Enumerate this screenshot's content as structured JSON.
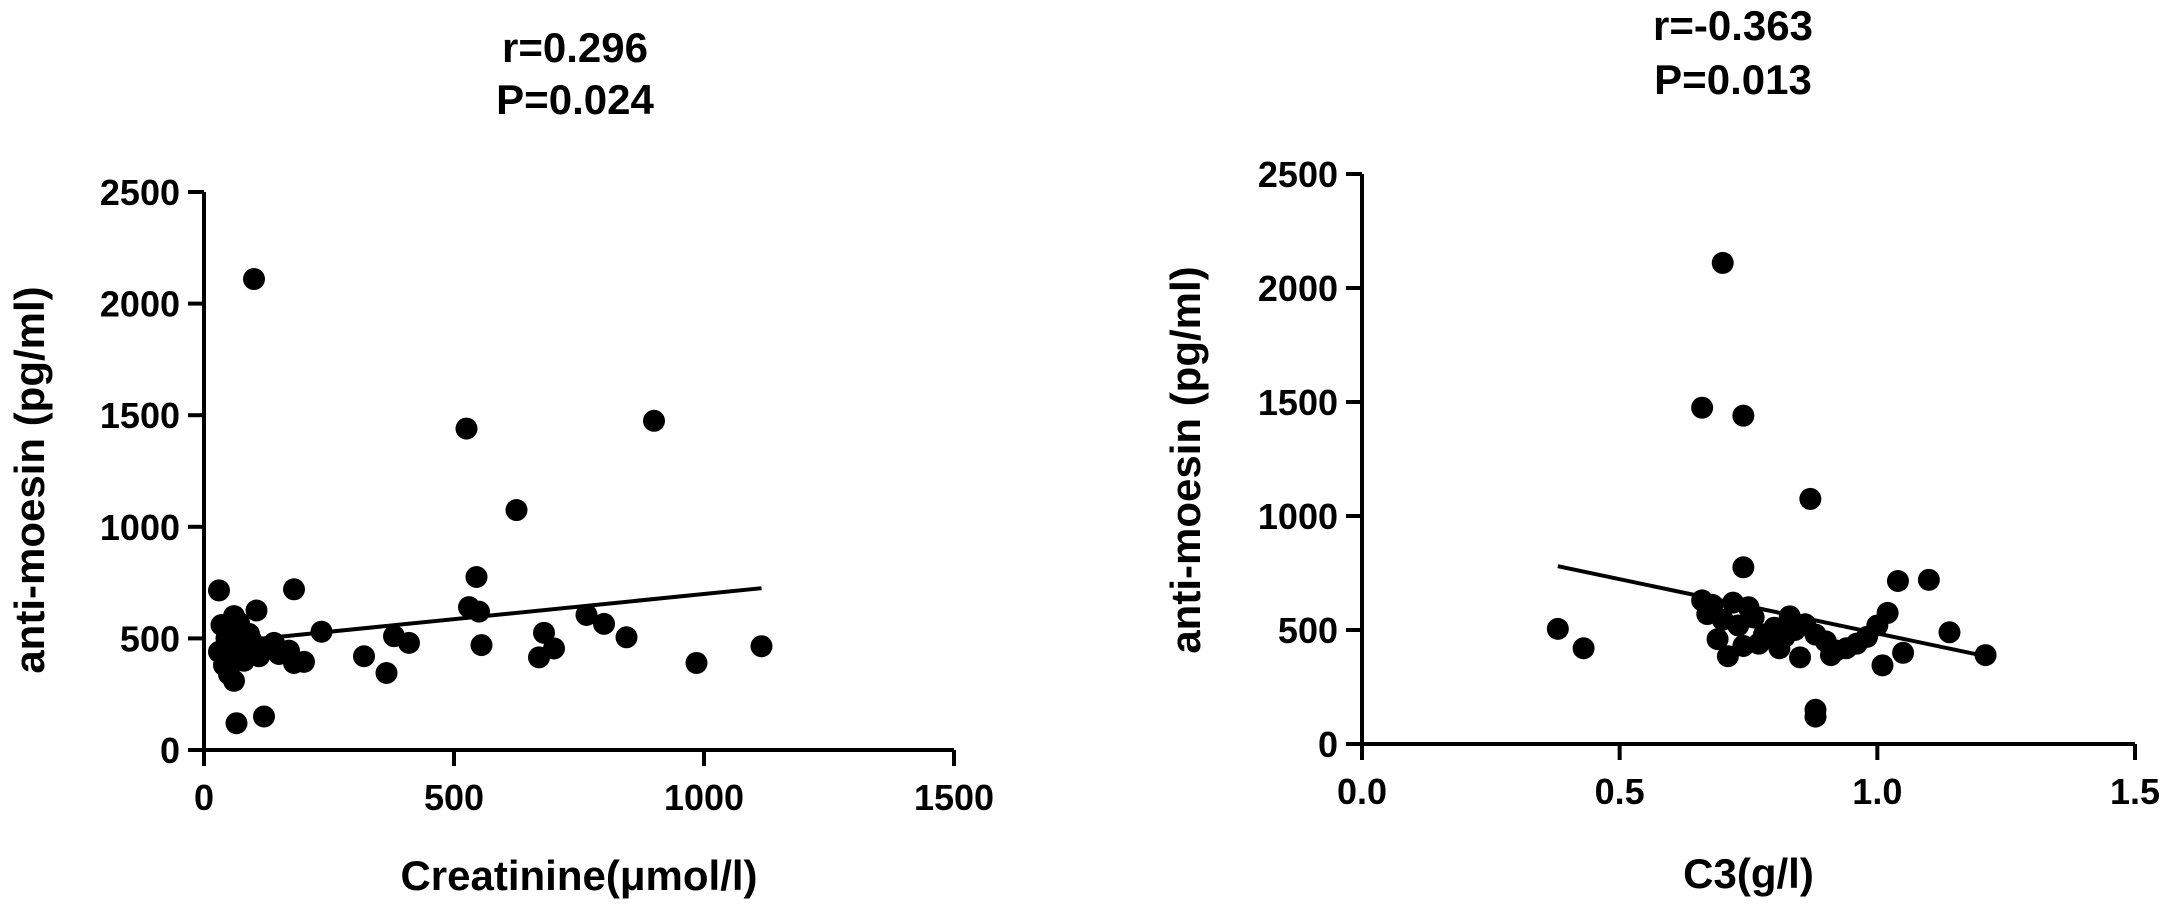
{
  "chart_data": [
    {
      "type": "scatter",
      "title": "r=0.296",
      "subtitle": "P=0.024",
      "xlabel": "Creatinine(μmol/l)",
      "ylabel": "anti-moesin (pg/ml)",
      "xlim": [
        0,
        1500
      ],
      "ylim": [
        0,
        2500
      ],
      "xticks": [
        "0",
        "500",
        "1000",
        "1500"
      ],
      "yticks": [
        "0",
        "500",
        "1000",
        "1500",
        "2000",
        "2500"
      ],
      "xtick_values": [
        0,
        500,
        1000,
        1500
      ],
      "ytick_values": [
        0,
        500,
        1000,
        1500,
        2000,
        2500
      ],
      "grid": false,
      "points": [
        {
          "x": 100,
          "y": 2110
        },
        {
          "x": 525,
          "y": 1440
        },
        {
          "x": 900,
          "y": 1475
        },
        {
          "x": 625,
          "y": 1075
        },
        {
          "x": 545,
          "y": 775
        },
        {
          "x": 30,
          "y": 715
        },
        {
          "x": 180,
          "y": 720
        },
        {
          "x": 530,
          "y": 640
        },
        {
          "x": 550,
          "y": 620
        },
        {
          "x": 765,
          "y": 605
        },
        {
          "x": 105,
          "y": 625
        },
        {
          "x": 60,
          "y": 600
        },
        {
          "x": 800,
          "y": 565
        },
        {
          "x": 235,
          "y": 530
        },
        {
          "x": 680,
          "y": 525
        },
        {
          "x": 380,
          "y": 510
        },
        {
          "x": 845,
          "y": 505
        },
        {
          "x": 410,
          "y": 480
        },
        {
          "x": 555,
          "y": 470
        },
        {
          "x": 700,
          "y": 455
        },
        {
          "x": 320,
          "y": 420
        },
        {
          "x": 670,
          "y": 415
        },
        {
          "x": 985,
          "y": 390
        },
        {
          "x": 1115,
          "y": 465
        },
        {
          "x": 365,
          "y": 345
        },
        {
          "x": 180,
          "y": 390
        },
        {
          "x": 200,
          "y": 395
        },
        {
          "x": 170,
          "y": 445
        },
        {
          "x": 125,
          "y": 460
        },
        {
          "x": 95,
          "y": 490
        },
        {
          "x": 80,
          "y": 470
        },
        {
          "x": 70,
          "y": 430
        },
        {
          "x": 55,
          "y": 530
        },
        {
          "x": 45,
          "y": 500
        },
        {
          "x": 30,
          "y": 440
        },
        {
          "x": 40,
          "y": 380
        },
        {
          "x": 50,
          "y": 340
        },
        {
          "x": 60,
          "y": 310
        },
        {
          "x": 80,
          "y": 400
        },
        {
          "x": 110,
          "y": 420
        },
        {
          "x": 140,
          "y": 480
        },
        {
          "x": 90,
          "y": 520
        },
        {
          "x": 70,
          "y": 570
        },
        {
          "x": 65,
          "y": 120
        },
        {
          "x": 120,
          "y": 150
        },
        {
          "x": 150,
          "y": 430
        },
        {
          "x": 35,
          "y": 560
        }
      ],
      "trendline": {
        "x": [
          30,
          1115
        ],
        "y": [
          480,
          725
        ]
      }
    },
    {
      "type": "scatter",
      "title": "r=-0.363",
      "subtitle": "P=0.013",
      "xlabel": "C3(g/l)",
      "ylabel": "anti-moesin (pg/ml)",
      "xlim": [
        0,
        1.5
      ],
      "ylim": [
        0,
        2500
      ],
      "xticks": [
        "0.0",
        "0.5",
        "1.0",
        "1.5"
      ],
      "yticks": [
        "0",
        "500",
        "1000",
        "1500",
        "2000",
        "2500"
      ],
      "xtick_values": [
        0,
        0.5,
        1.0,
        1.5
      ],
      "ytick_values": [
        0,
        500,
        1000,
        1500,
        2000,
        2500
      ],
      "grid": false,
      "points": [
        {
          "x": 0.7,
          "y": 2110
        },
        {
          "x": 0.66,
          "y": 1475
        },
        {
          "x": 0.74,
          "y": 1440
        },
        {
          "x": 0.87,
          "y": 1075
        },
        {
          "x": 0.74,
          "y": 775
        },
        {
          "x": 1.04,
          "y": 715
        },
        {
          "x": 1.1,
          "y": 720
        },
        {
          "x": 0.38,
          "y": 505
        },
        {
          "x": 0.43,
          "y": 420
        },
        {
          "x": 0.66,
          "y": 630
        },
        {
          "x": 0.68,
          "y": 610
        },
        {
          "x": 0.72,
          "y": 620
        },
        {
          "x": 0.75,
          "y": 600
        },
        {
          "x": 0.67,
          "y": 570
        },
        {
          "x": 0.7,
          "y": 545
        },
        {
          "x": 0.73,
          "y": 520
        },
        {
          "x": 0.76,
          "y": 555
        },
        {
          "x": 0.78,
          "y": 480
        },
        {
          "x": 0.8,
          "y": 510
        },
        {
          "x": 0.82,
          "y": 470
        },
        {
          "x": 0.84,
          "y": 500
        },
        {
          "x": 0.86,
          "y": 525
        },
        {
          "x": 0.88,
          "y": 480
        },
        {
          "x": 0.9,
          "y": 450
        },
        {
          "x": 0.92,
          "y": 410
        },
        {
          "x": 0.94,
          "y": 420
        },
        {
          "x": 0.96,
          "y": 440
        },
        {
          "x": 0.98,
          "y": 470
        },
        {
          "x": 1.0,
          "y": 520
        },
        {
          "x": 1.02,
          "y": 575
        },
        {
          "x": 1.05,
          "y": 400
        },
        {
          "x": 1.01,
          "y": 345
        },
        {
          "x": 1.14,
          "y": 490
        },
        {
          "x": 1.21,
          "y": 390
        },
        {
          "x": 0.71,
          "y": 385
        },
        {
          "x": 0.74,
          "y": 430
        },
        {
          "x": 0.77,
          "y": 440
        },
        {
          "x": 0.81,
          "y": 420
        },
        {
          "x": 0.85,
          "y": 380
        },
        {
          "x": 0.88,
          "y": 150
        },
        {
          "x": 0.88,
          "y": 120
        },
        {
          "x": 0.91,
          "y": 390
        },
        {
          "x": 0.69,
          "y": 460
        },
        {
          "x": 0.83,
          "y": 560
        }
      ],
      "trendline": {
        "x": [
          0.38,
          1.21
        ],
        "y": [
          780,
          385
        ]
      }
    }
  ]
}
